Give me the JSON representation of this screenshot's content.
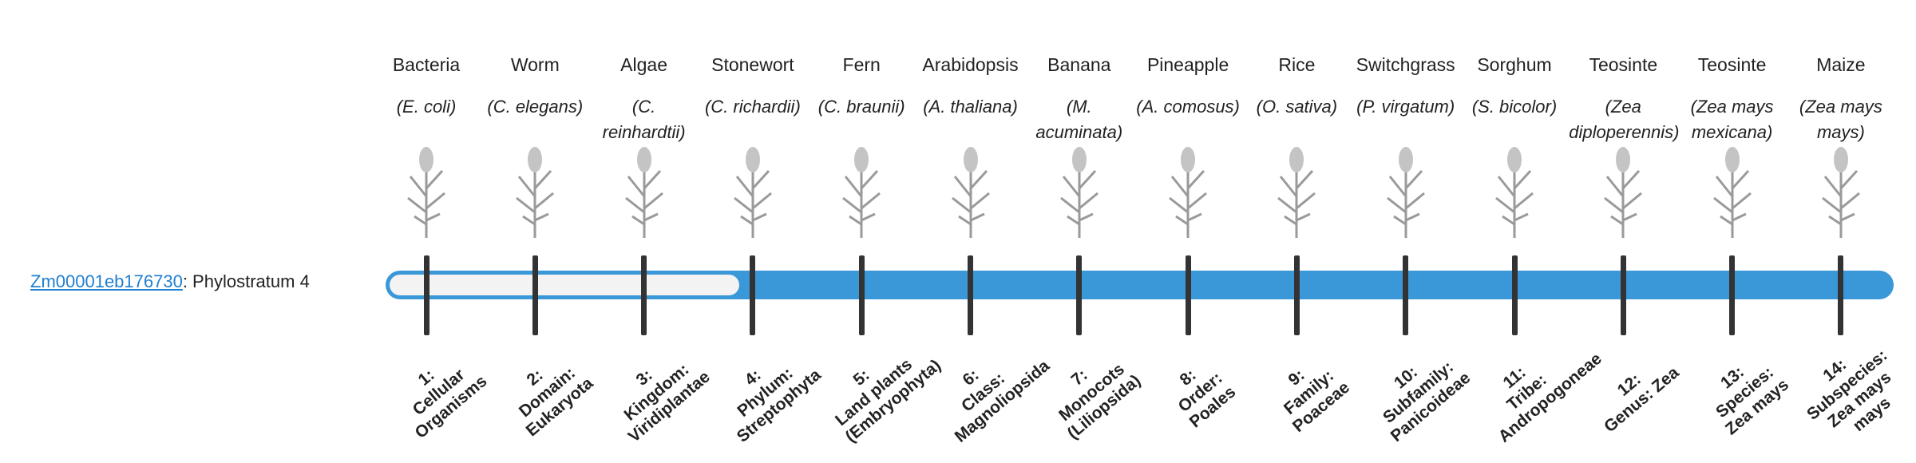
{
  "gene": {
    "id": "Zm00001eb176730",
    "label": ": Phylostratum",
    "phylostratum": 4
  },
  "organisms": [
    {
      "name": "Bacteria",
      "latin": "(E. coli)"
    },
    {
      "name": "Worm",
      "latin": "(C. elegans)"
    },
    {
      "name": "Algae",
      "latin": "(C. reinhardtii)"
    },
    {
      "name": "Stonewort",
      "latin": "(C. richardii)"
    },
    {
      "name": "Fern",
      "latin": "(C. braunii)"
    },
    {
      "name": "Arabidopsis",
      "latin": "(A. thaliana)"
    },
    {
      "name": "Banana",
      "latin": "(M. acuminata)"
    },
    {
      "name": "Pineapple",
      "latin": "(A. comosus)"
    },
    {
      "name": "Rice",
      "latin": "(O. sativa)"
    },
    {
      "name": "Switchgrass",
      "latin": "(P. virgatum)"
    },
    {
      "name": "Sorghum",
      "latin": "(S. bicolor)"
    },
    {
      "name": "Teosinte",
      "latin": "(Zea diploperennis)"
    },
    {
      "name": "Teosinte",
      "latin": "(Zea mays mexicana)"
    },
    {
      "name": "Maize",
      "latin": "(Zea mays mays)"
    }
  ],
  "strata": [
    {
      "num": "1:",
      "name": "Cellular Organisms"
    },
    {
      "num": "2:",
      "name": "Domain: Eukaryota"
    },
    {
      "num": "3:",
      "name": "Kingdom: Viridiplantae"
    },
    {
      "num": "4:",
      "name": "Phylum: Streptophyta"
    },
    {
      "num": "5:",
      "name": "Land plants (Embryophyta)"
    },
    {
      "num": "6:",
      "name": "Class: Magnoliopsida"
    },
    {
      "num": "7:",
      "name": "Monocots (Liliopsida)"
    },
    {
      "num": "8:",
      "name": "Order: Poales"
    },
    {
      "num": "9:",
      "name": "Family: Poaceae"
    },
    {
      "num": "10:",
      "name": "Subfamily: Panicoideae"
    },
    {
      "num": "11:",
      "name": "Tribe: Andropogoneae"
    },
    {
      "num": "12:",
      "name": "Genus: Zea"
    },
    {
      "num": "13:",
      "name": "Species: Zea mays"
    },
    {
      "num": "14:",
      "name": "Subspecies: Zea mays mays"
    }
  ]
}
